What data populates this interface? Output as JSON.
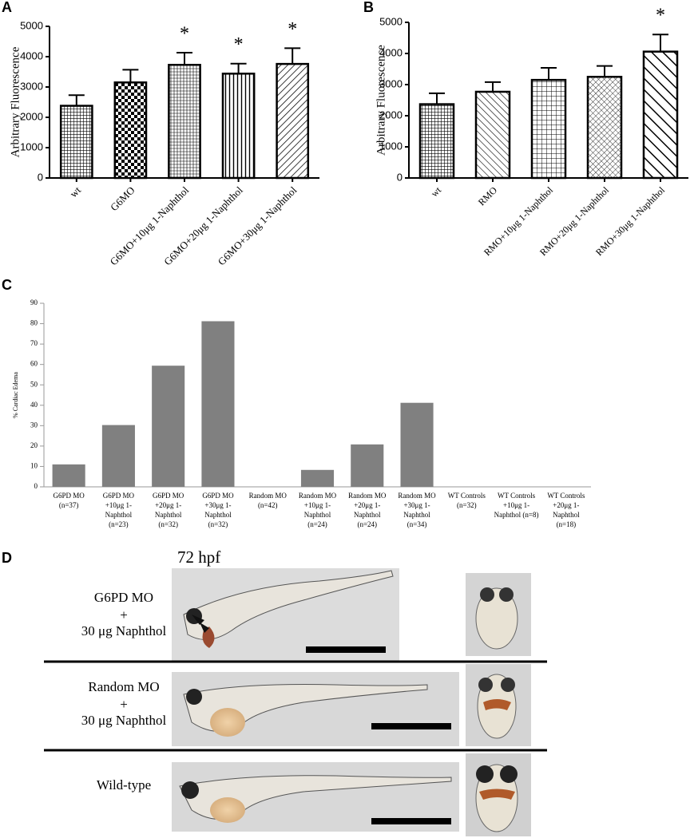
{
  "chart_data": [
    {
      "type": "bar",
      "panel_label": "A",
      "ylabel": "Arbitrary Fluorescence",
      "categories": [
        "wt",
        "G6MO",
        "G6MO+10μg 1-Naphthol",
        "G6MO+20μg 1-Naphthol",
        "G6MO+30μg 1-Naphthol"
      ],
      "values": [
        2380,
        3150,
        3730,
        3440,
        3760
      ],
      "errors": [
        350,
        420,
        400,
        330,
        520
      ],
      "patterns": [
        "grid",
        "checker",
        "hlines",
        "vlines",
        "diagonal"
      ],
      "annotations": [
        {
          "index": 2,
          "text": "*"
        },
        {
          "index": 3,
          "text": "*"
        },
        {
          "index": 4,
          "text": "*"
        }
      ],
      "ylim": [
        0,
        5000
      ],
      "yticks": [
        0,
        1000,
        2000,
        3000,
        4000,
        5000
      ]
    },
    {
      "type": "bar",
      "panel_label": "B",
      "ylabel": "Arbitrary Fluorescence",
      "categories": [
        "wt",
        "RMO",
        "RMO+10μg 1-Naphthol",
        "RMO+20μg 1-Naphthol",
        "RMO+30μg 1-Naphthol"
      ],
      "values": [
        2370,
        2770,
        3150,
        3250,
        4060
      ],
      "errors": [
        350,
        310,
        390,
        350,
        550
      ],
      "patterns": [
        "grid",
        "backdiag",
        "squares",
        "cross",
        "widediag"
      ],
      "annotations": [
        {
          "index": 4,
          "text": "*"
        }
      ],
      "ylim": [
        0,
        5000
      ],
      "yticks": [
        0,
        1000,
        2000,
        3000,
        4000,
        5000
      ]
    },
    {
      "type": "bar",
      "panel_label": "C",
      "ylabel": "% Cardiac Edema",
      "color": "#808080",
      "categories": [
        [
          "G6PD MO",
          "(n=37)"
        ],
        [
          "G6PD MO",
          "+10μg 1-",
          "Naphthol",
          "(n=23)"
        ],
        [
          "G6PD MO",
          "+20μg 1-",
          "Naphthol",
          "(n=32)"
        ],
        [
          "G6PD MO",
          "+30μg 1-",
          "Naphthol",
          "(n=32)"
        ],
        [
          "Random MO",
          "(n=42)"
        ],
        [
          "Random MO",
          "+10μg 1-",
          "Naphthol",
          "(n=24)"
        ],
        [
          "Random MO",
          "+20μg 1-",
          "Naphthol",
          "(n=24)"
        ],
        [
          "Random MO",
          "+30μg 1-",
          "Naphthol",
          "(n=34)"
        ],
        [
          "WT Controls",
          "(n=32)"
        ],
        [
          "WT Controls",
          "+10μg 1-",
          "Naphthol  (n=8)"
        ],
        [
          "WT Controls",
          "+20μg 1-",
          "Naphthol",
          "(n=18)"
        ]
      ],
      "values": [
        11,
        30.3,
        59.4,
        81.2,
        0,
        8.3,
        20.8,
        41.2,
        0,
        0,
        0
      ],
      "ylim": [
        0,
        90
      ],
      "yticks": [
        0,
        10,
        20,
        30,
        40,
        50,
        60,
        70,
        80,
        90
      ]
    }
  ],
  "panel_d": {
    "label": "D",
    "time": "72 hpf",
    "rows": [
      {
        "lines": [
          "G6PD MO",
          "+",
          "30 μg Naphthol"
        ]
      },
      {
        "lines": [
          "Random MO",
          "+",
          "30 μg Naphthol"
        ]
      },
      {
        "lines": [
          "Wild-type"
        ]
      }
    ]
  }
}
